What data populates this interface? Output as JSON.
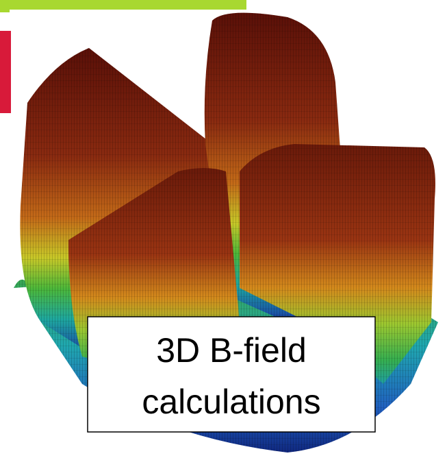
{
  "caption": {
    "lines": [
      "3D B-field",
      "calculations"
    ]
  }
}
